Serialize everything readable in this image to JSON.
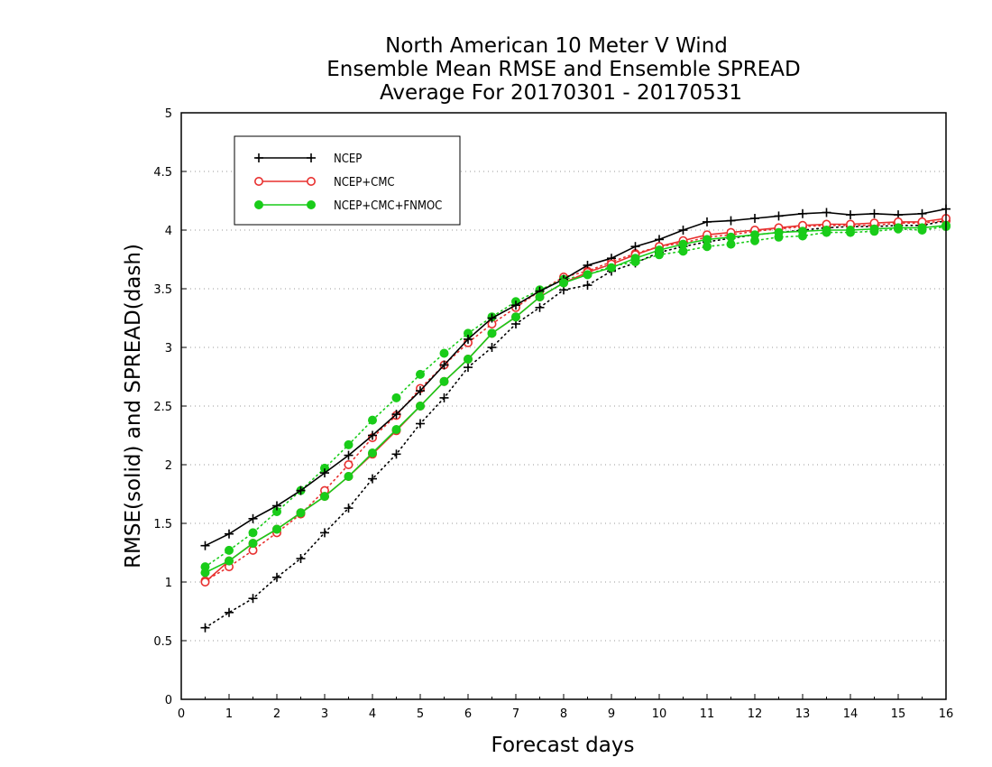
{
  "chart_data": {
    "type": "line",
    "title": [
      "North American 10 Meter V Wind",
      "Ensemble Mean RMSE and Ensemble SPREAD",
      "Average For 20170301 - 20170531"
    ],
    "xlabel": "Forecast days",
    "ylabel": "RMSE(solid) and SPREAD(dash)",
    "xlim": [
      0,
      16
    ],
    "ylim": [
      0,
      5
    ],
    "xticks": [
      "0",
      "1",
      "2",
      "3",
      "4",
      "5",
      "6",
      "7",
      "8",
      "9",
      "10",
      "11",
      "12",
      "13",
      "14",
      "15",
      "16"
    ],
    "yticks": [
      "0",
      "0.5",
      "1",
      "1.5",
      "2",
      "2.5",
      "3",
      "3.5",
      "4",
      "4.5",
      "5"
    ],
    "grid": true,
    "legend_position": "top-left",
    "x": [
      0.5,
      1,
      1.5,
      2,
      2.5,
      3,
      3.5,
      4,
      4.5,
      5,
      5.5,
      6,
      6.5,
      7,
      7.5,
      8,
      8.5,
      9,
      9.5,
      10,
      10.5,
      11,
      11.5,
      12,
      12.5,
      13,
      13.5,
      14,
      14.5,
      15,
      15.5,
      16
    ],
    "series": [
      {
        "name": "NCEP",
        "color": "#000000",
        "marker": "plus",
        "rmse": [
          1.31,
          1.41,
          1.54,
          1.65,
          1.78,
          1.93,
          2.08,
          2.25,
          2.43,
          2.63,
          2.85,
          3.07,
          3.25,
          3.36,
          3.48,
          3.58,
          3.7,
          3.76,
          3.86,
          3.92,
          4.0,
          4.07,
          4.08,
          4.1,
          4.12,
          4.14,
          4.15,
          4.13,
          4.14,
          4.13,
          4.14,
          4.18
        ],
        "spread": [
          0.61,
          0.74,
          0.86,
          1.04,
          1.2,
          1.42,
          1.63,
          1.88,
          2.09,
          2.35,
          2.57,
          2.83,
          3.0,
          3.2,
          3.34,
          3.49,
          3.53,
          3.65,
          3.72,
          3.81,
          3.86,
          3.9,
          3.93,
          3.96,
          3.98,
          4.0,
          4.02,
          4.03,
          4.03,
          4.04,
          4.04,
          4.08
        ]
      },
      {
        "name": "NCEP+CMC",
        "color": "#e8302f",
        "marker": "open-circle",
        "rmse": [
          1.0,
          1.18,
          1.33,
          1.45,
          1.59,
          1.73,
          1.9,
          2.09,
          2.29,
          2.5,
          2.71,
          2.9,
          3.12,
          3.26,
          3.43,
          3.55,
          3.64,
          3.71,
          3.79,
          3.86,
          3.91,
          3.96,
          3.98,
          4.0,
          4.02,
          4.04,
          4.05,
          4.05,
          4.06,
          4.07,
          4.07,
          4.1
        ],
        "spread": [
          1.01,
          1.13,
          1.27,
          1.42,
          1.58,
          1.78,
          2.0,
          2.23,
          2.42,
          2.65,
          2.85,
          3.04,
          3.2,
          3.34,
          3.48,
          3.6,
          3.65,
          3.73,
          3.8,
          3.86,
          3.89,
          3.94,
          3.96,
          3.99,
          4.01,
          4.03,
          4.04,
          4.04,
          4.04,
          4.06,
          4.06,
          4.08
        ]
      },
      {
        "name": "NCEP+CMC+FNMOC",
        "color": "#19cc19",
        "marker": "filled-circle",
        "rmse": [
          1.08,
          1.18,
          1.33,
          1.45,
          1.59,
          1.73,
          1.9,
          2.1,
          2.3,
          2.5,
          2.71,
          2.9,
          3.12,
          3.26,
          3.43,
          3.55,
          3.62,
          3.68,
          3.76,
          3.83,
          3.88,
          3.92,
          3.94,
          3.96,
          3.98,
          3.99,
          4.0,
          4.0,
          4.01,
          4.02,
          4.02,
          4.04
        ],
        "spread": [
          1.13,
          1.27,
          1.42,
          1.6,
          1.78,
          1.97,
          2.17,
          2.38,
          2.57,
          2.77,
          2.95,
          3.12,
          3.26,
          3.39,
          3.49,
          3.58,
          3.62,
          3.69,
          3.73,
          3.79,
          3.82,
          3.86,
          3.88,
          3.91,
          3.94,
          3.95,
          3.98,
          3.98,
          3.99,
          4.01,
          4.0,
          4.03
        ]
      }
    ]
  }
}
